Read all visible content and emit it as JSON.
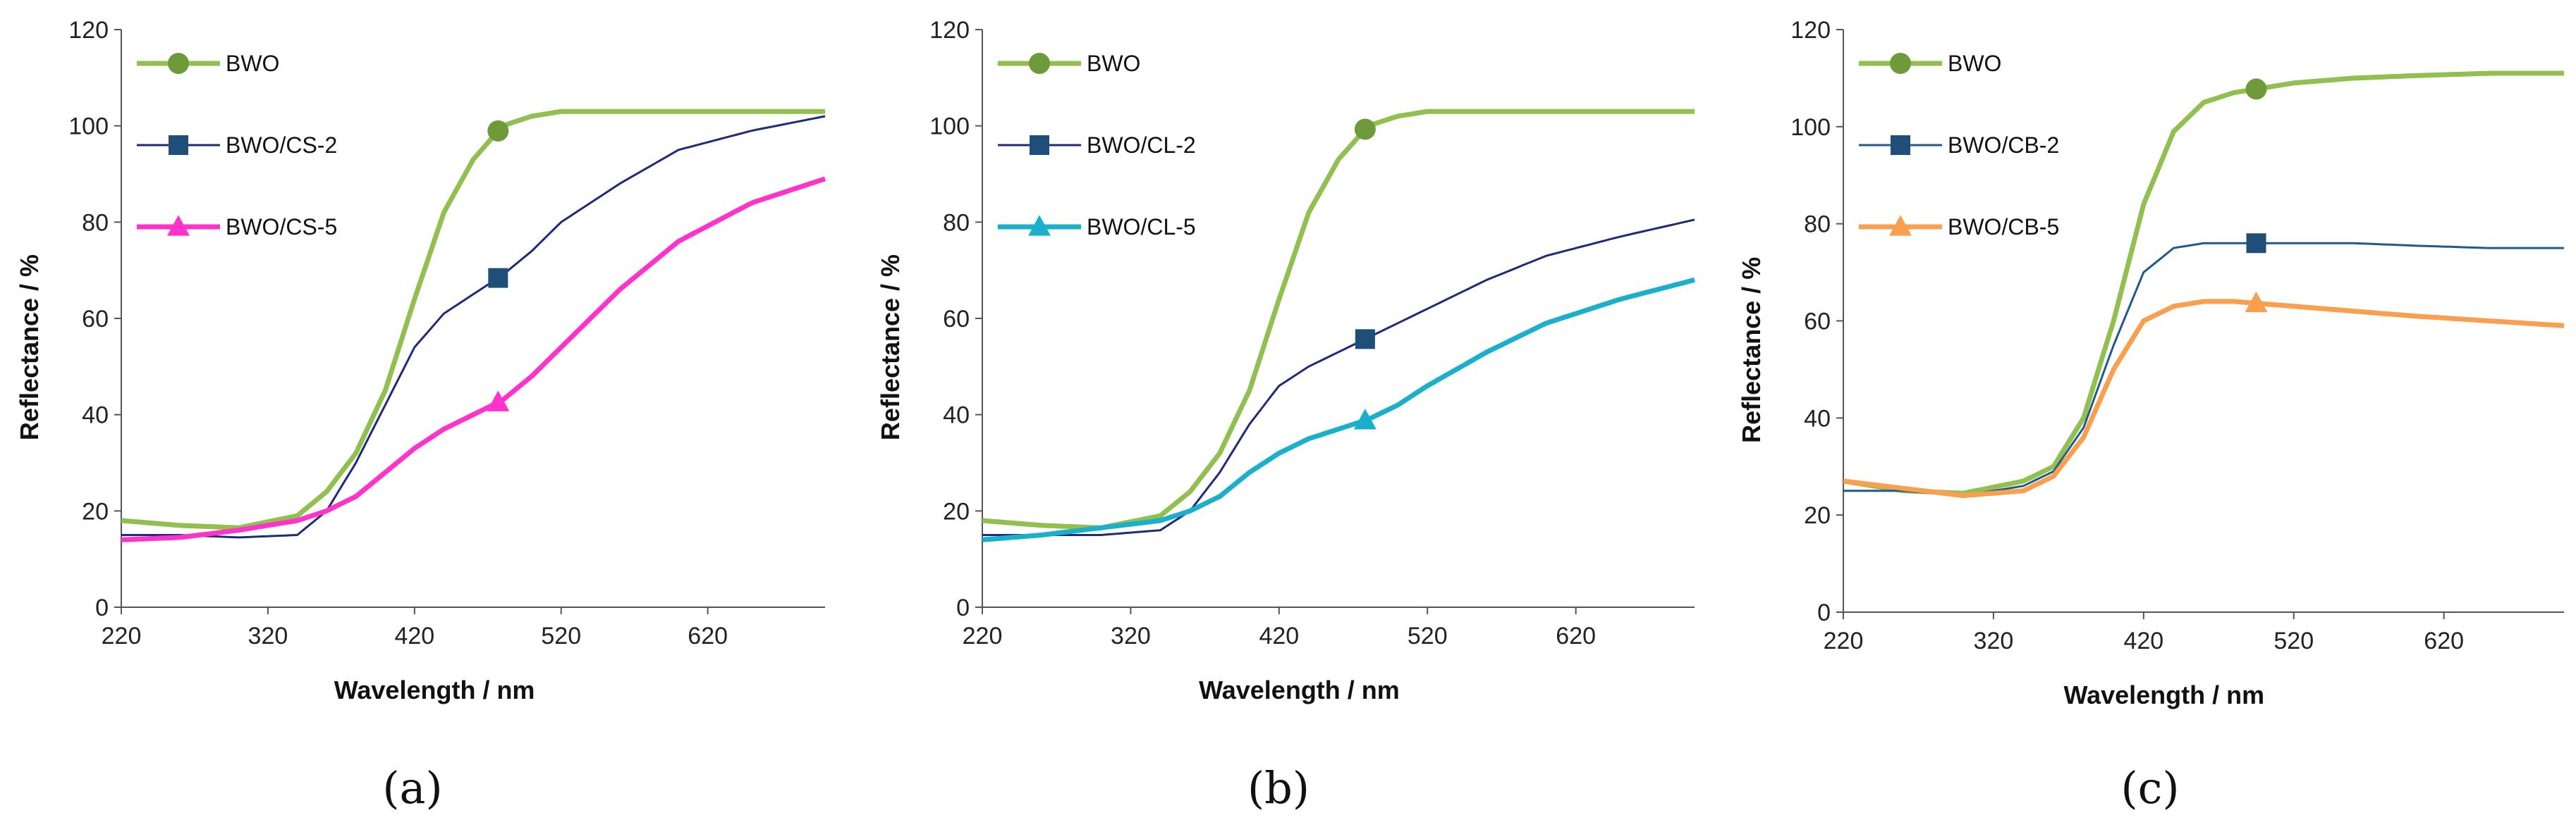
{
  "chart_data": [
    {
      "type": "line",
      "panel_label": "(a)",
      "xlabel": "Wavelength / nm",
      "ylabel": "Reflectance / %",
      "xlim": [
        220,
        700
      ],
      "ylim": [
        0,
        120
      ],
      "xticks": [
        220,
        320,
        420,
        520,
        620
      ],
      "yticks": [
        0,
        20,
        40,
        60,
        80,
        100,
        120
      ],
      "legend_position": "top-left",
      "series": [
        {
          "name": "BWO",
          "color": "#92c050",
          "width": 7,
          "marker": "circle",
          "marker_color": "#6e9a3a",
          "marker_x": 477,
          "x": [
            220,
            260,
            300,
            340,
            360,
            380,
            400,
            420,
            440,
            460,
            480,
            500,
            520,
            560,
            600,
            650,
            700
          ],
          "y": [
            18,
            17,
            16.5,
            19,
            24,
            32,
            45,
            64,
            82,
            93,
            100,
            102,
            103,
            103,
            103,
            103,
            103
          ]
        },
        {
          "name": "BWO/CS-2",
          "color": "#1f2a7a",
          "width": 3,
          "marker": "square",
          "marker_color": "#1f4e79",
          "marker_x": 477,
          "x": [
            220,
            260,
            300,
            340,
            360,
            380,
            400,
            420,
            440,
            460,
            480,
            500,
            520,
            560,
            600,
            650,
            700
          ],
          "y": [
            15,
            15,
            14.5,
            15,
            20,
            30,
            42,
            54,
            61,
            65,
            69,
            74,
            80,
            88,
            95,
            99,
            102
          ]
        },
        {
          "name": "BWO/CS-5",
          "color": "#ff33cc",
          "width": 7,
          "marker": "triangle",
          "marker_color": "#ff33cc",
          "marker_x": 477,
          "x": [
            220,
            260,
            300,
            340,
            360,
            380,
            400,
            420,
            440,
            460,
            480,
            500,
            520,
            560,
            600,
            650,
            700
          ],
          "y": [
            14,
            14.5,
            16,
            18,
            20,
            23,
            28,
            33,
            37,
            40,
            43,
            48,
            54,
            66,
            76,
            84,
            89
          ]
        }
      ]
    },
    {
      "type": "line",
      "panel_label": "(b)",
      "xlabel": "Wavelength / nm",
      "ylabel": "Reflectance / %",
      "xlim": [
        220,
        700
      ],
      "ylim": [
        0,
        120
      ],
      "xticks": [
        220,
        320,
        420,
        520,
        620
      ],
      "yticks": [
        0,
        20,
        40,
        60,
        80,
        100,
        120
      ],
      "legend_position": "top-left",
      "series": [
        {
          "name": "BWO",
          "color": "#92c050",
          "width": 7,
          "marker": "circle",
          "marker_color": "#6e9a3a",
          "marker_x": 478,
          "x": [
            220,
            260,
            300,
            340,
            360,
            380,
            400,
            420,
            440,
            460,
            480,
            500,
            520,
            560,
            600,
            650,
            700
          ],
          "y": [
            18,
            17,
            16.5,
            19,
            24,
            32,
            45,
            64,
            82,
            93,
            100,
            102,
            103,
            103,
            103,
            103,
            103
          ]
        },
        {
          "name": "BWO/CL-2",
          "color": "#1f2a7a",
          "width": 3,
          "marker": "square",
          "marker_color": "#1f4e79",
          "marker_x": 478,
          "x": [
            220,
            260,
            300,
            340,
            360,
            380,
            400,
            420,
            440,
            460,
            480,
            500,
            520,
            560,
            600,
            650,
            700
          ],
          "y": [
            15,
            15,
            15,
            16,
            20,
            28,
            38,
            46,
            50,
            53,
            56,
            59,
            62,
            68,
            73,
            77,
            80.5
          ]
        },
        {
          "name": "BWO/CL-5",
          "color": "#1ab0cc",
          "width": 7,
          "marker": "triangle",
          "marker_color": "#1ab0cc",
          "marker_x": 478,
          "x": [
            220,
            260,
            300,
            340,
            360,
            380,
            400,
            420,
            440,
            460,
            480,
            500,
            520,
            560,
            600,
            650,
            700
          ],
          "y": [
            14,
            15,
            16.5,
            18,
            20,
            23,
            28,
            32,
            35,
            37,
            39,
            42,
            46,
            53,
            59,
            64,
            68
          ]
        }
      ]
    },
    {
      "type": "line",
      "panel_label": "(c)",
      "xlabel": "Wavelength / nm",
      "ylabel": "Reflectance / %",
      "xlim": [
        220,
        700
      ],
      "ylim": [
        0,
        120
      ],
      "xticks": [
        220,
        320,
        420,
        520,
        620
      ],
      "yticks": [
        0,
        20,
        40,
        60,
        80,
        100,
        120
      ],
      "legend_position": "top-left",
      "series": [
        {
          "name": "BWO",
          "color": "#92c050",
          "width": 7,
          "marker": "circle",
          "marker_color": "#6e9a3a",
          "marker_x": 495,
          "x": [
            220,
            260,
            300,
            340,
            360,
            380,
            400,
            420,
            440,
            460,
            480,
            500,
            520,
            560,
            600,
            650,
            700
          ],
          "y": [
            27,
            25,
            24.5,
            27,
            30,
            40,
            60,
            84,
            99,
            105,
            107,
            108,
            109,
            110,
            110.5,
            111,
            111
          ]
        },
        {
          "name": "BWO/CB-2",
          "color": "#1f5a8a",
          "width": 3,
          "marker": "square",
          "marker_color": "#1f4e79",
          "marker_x": 495,
          "x": [
            220,
            260,
            300,
            340,
            360,
            380,
            400,
            420,
            440,
            460,
            480,
            500,
            520,
            560,
            600,
            650,
            700
          ],
          "y": [
            25,
            25,
            24,
            26,
            29,
            38,
            55,
            70,
            75,
            76,
            76,
            76,
            76,
            76,
            75.5,
            75,
            75
          ]
        },
        {
          "name": "BWO/CB-5",
          "color": "#f8a050",
          "width": 7,
          "marker": "triangle",
          "marker_color": "#f8a050",
          "marker_x": 495,
          "x": [
            220,
            260,
            300,
            340,
            360,
            380,
            400,
            420,
            440,
            460,
            480,
            500,
            520,
            560,
            600,
            650,
            700
          ],
          "y": [
            27,
            25.5,
            24,
            25,
            28,
            36,
            50,
            60,
            63,
            64,
            64,
            63.5,
            63,
            62,
            61,
            60,
            59
          ]
        }
      ]
    }
  ]
}
